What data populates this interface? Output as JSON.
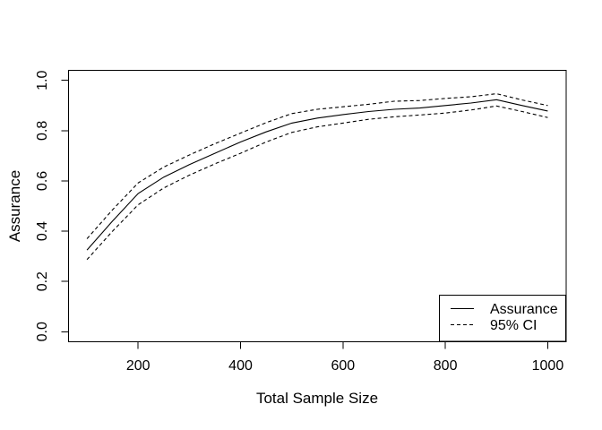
{
  "figure": {
    "background_color": "#ffffff",
    "line_color": "#000000",
    "text_color": "#000000"
  },
  "chart_data": {
    "type": "line",
    "title": "",
    "xlabel": "Total Sample Size",
    "ylabel": "Assurance",
    "xlim": [
      64,
      1036
    ],
    "ylim": [
      -0.04,
      1.04
    ],
    "grid": false,
    "x_ticks": [
      200,
      400,
      600,
      800,
      1000
    ],
    "x_tick_labels": [
      "200",
      "400",
      "600",
      "800",
      "1000"
    ],
    "y_ticks": [
      0.0,
      0.2,
      0.4,
      0.6,
      0.8,
      1.0
    ],
    "y_tick_labels": [
      "0.0",
      "0.2",
      "0.4",
      "0.6",
      "0.8",
      "1.0"
    ],
    "x": [
      100,
      150,
      200,
      250,
      300,
      350,
      400,
      450,
      500,
      550,
      600,
      650,
      700,
      750,
      800,
      850,
      900,
      950,
      1000
    ],
    "series": [
      {
        "name": "Assurance",
        "line_style": "solid",
        "values": [
          0.325,
          0.44,
          0.55,
          0.615,
          0.665,
          0.71,
          0.755,
          0.795,
          0.83,
          0.85,
          0.864,
          0.876,
          0.885,
          0.89,
          0.9,
          0.91,
          0.923,
          0.9,
          0.878
        ]
      },
      {
        "name": "95% CI upper",
        "line_style": "dashed",
        "values": [
          0.37,
          0.485,
          0.592,
          0.655,
          0.703,
          0.748,
          0.79,
          0.832,
          0.868,
          0.885,
          0.895,
          0.905,
          0.917,
          0.92,
          0.928,
          0.935,
          0.947,
          0.922,
          0.9
        ]
      },
      {
        "name": "95% CI lower",
        "line_style": "dashed",
        "values": [
          0.287,
          0.4,
          0.505,
          0.572,
          0.623,
          0.668,
          0.71,
          0.755,
          0.793,
          0.815,
          0.83,
          0.845,
          0.855,
          0.862,
          0.87,
          0.882,
          0.898,
          0.876,
          0.852
        ]
      }
    ],
    "legend": {
      "position": "bottomright",
      "entries": [
        {
          "label": "Assurance",
          "line_style": "solid"
        },
        {
          "label": "95% CI",
          "line_style": "dashed"
        }
      ]
    }
  }
}
